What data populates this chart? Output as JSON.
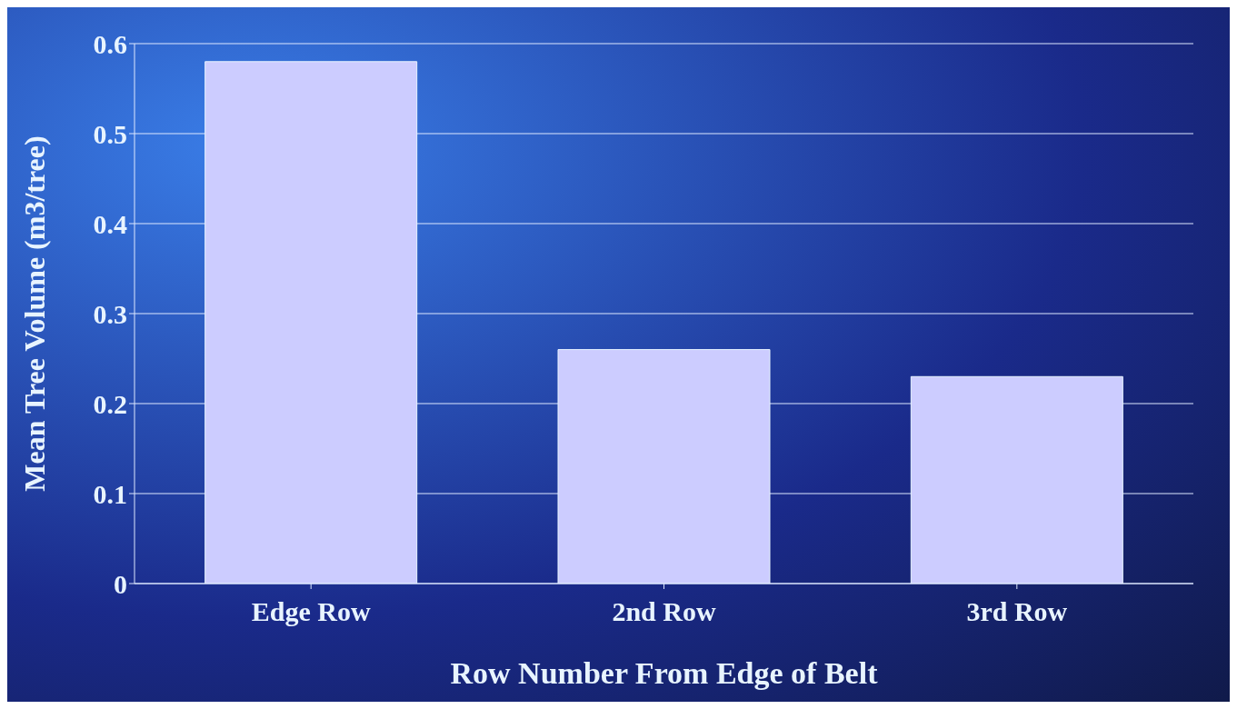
{
  "chart_data": {
    "type": "bar",
    "xlabel": "Row Number From Edge of Belt",
    "ylabel": "Mean Tree Volume (m3/tree)",
    "categories": [
      "Edge Row",
      "2nd Row",
      "3rd Row"
    ],
    "values": [
      0.58,
      0.26,
      0.23
    ],
    "color": "#ccccff",
    "ylim": [
      0,
      0.6
    ],
    "yticks": [
      0,
      0.1,
      0.2,
      0.3,
      0.4,
      0.5,
      0.6
    ],
    "grid": "y"
  }
}
